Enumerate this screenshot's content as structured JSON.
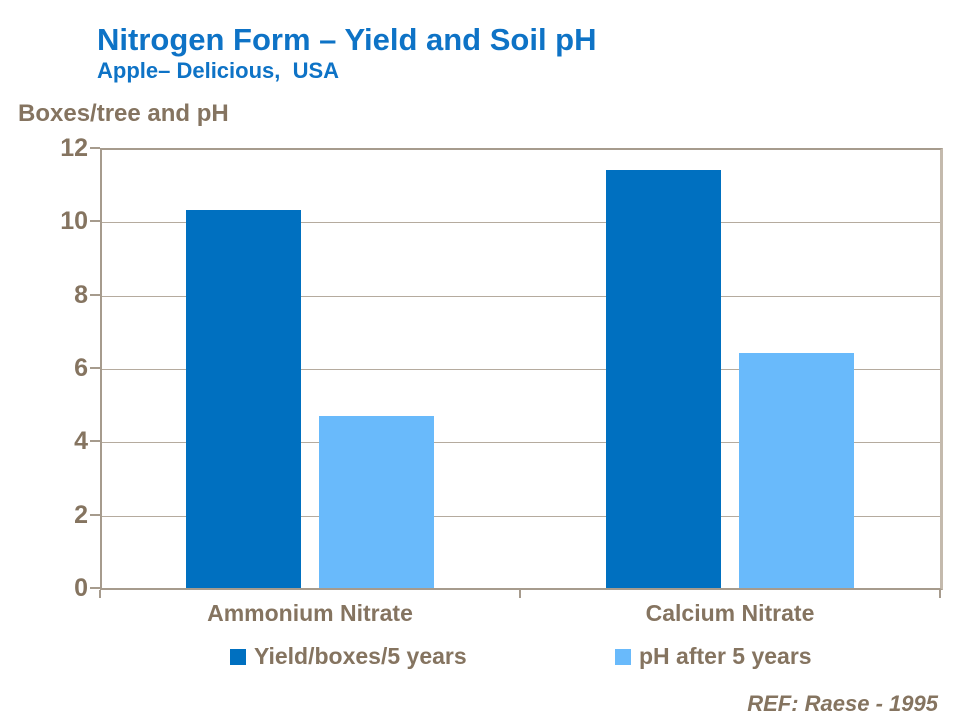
{
  "header": {
    "title": "Nitrogen Form – Yield and Soil pH",
    "subtitle": "Apple– Delicious,  USA"
  },
  "footer": {
    "ref": "REF: Raese - 1995"
  },
  "colors": {
    "title_blue": "#0E73C6",
    "series_yield": "#0070C0",
    "series_ph": "#69BAFB",
    "axis_text": "#857460",
    "gridline": "#B5AB9E",
    "axis_line": "#A69B8D"
  },
  "chart_data": {
    "type": "bar",
    "title": "Nitrogen Form – Yield and Soil pH",
    "subtitle": "Apple– Delicious, USA",
    "ylabel": "Boxes/tree and pH",
    "xlabel": "",
    "categories": [
      "Ammonium Nitrate",
      "Calcium Nitrate"
    ],
    "series": [
      {
        "name": "Yield/boxes/5 years",
        "color": "#0070C0",
        "values": [
          10.3,
          11.4
        ]
      },
      {
        "name": "pH after 5 years",
        "color": "#69BAFB",
        "values": [
          4.7,
          6.4
        ]
      }
    ],
    "ylim": [
      0,
      12
    ],
    "yticks": [
      0,
      2,
      4,
      6,
      8,
      10,
      12
    ],
    "grid": true,
    "legend_position": "bottom"
  }
}
